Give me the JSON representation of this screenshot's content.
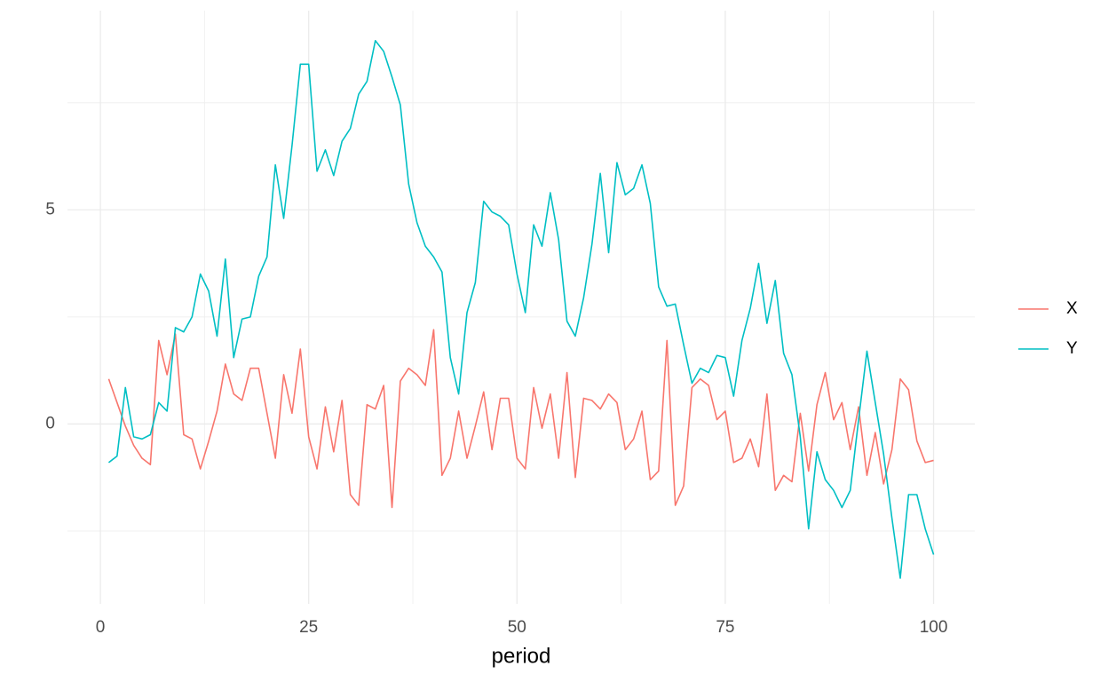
{
  "chart_data": {
    "type": "line",
    "x_label": "period",
    "x": [
      1,
      2,
      3,
      4,
      5,
      6,
      7,
      8,
      9,
      10,
      11,
      12,
      13,
      14,
      15,
      16,
      17,
      18,
      19,
      20,
      21,
      22,
      23,
      24,
      25,
      26,
      27,
      28,
      29,
      30,
      31,
      32,
      33,
      34,
      35,
      36,
      37,
      38,
      39,
      40,
      41,
      42,
      43,
      44,
      45,
      46,
      47,
      48,
      49,
      50,
      51,
      52,
      53,
      54,
      55,
      56,
      57,
      58,
      59,
      60,
      61,
      62,
      63,
      64,
      65,
      66,
      67,
      68,
      69,
      70,
      71,
      72,
      73,
      74,
      75,
      76,
      77,
      78,
      79,
      80,
      81,
      82,
      83,
      84,
      85,
      86,
      87,
      88,
      89,
      90,
      91,
      92,
      93,
      94,
      95,
      96,
      97,
      98,
      99,
      100
    ],
    "series": [
      {
        "name": "X",
        "color": "#F8766D",
        "values": [
          1.05,
          0.5,
          -0.05,
          -0.5,
          -0.8,
          -0.95,
          1.95,
          1.15,
          2.1,
          -0.25,
          -0.35,
          -1.05,
          -0.4,
          0.3,
          1.4,
          0.7,
          0.55,
          1.3,
          1.3,
          0.25,
          -0.8,
          1.15,
          0.25,
          1.75,
          -0.3,
          -1.05,
          0.4,
          -0.65,
          0.55,
          -1.65,
          -1.9,
          0.45,
          0.35,
          0.9,
          -1.95,
          1.0,
          1.3,
          1.15,
          0.9,
          2.2,
          -1.2,
          -0.8,
          0.3,
          -0.8,
          -0.05,
          0.75,
          -0.6,
          0.6,
          0.6,
          -0.8,
          -1.05,
          0.85,
          -0.1,
          0.7,
          -0.8,
          1.2,
          -1.25,
          0.6,
          0.55,
          0.35,
          0.7,
          0.5,
          -0.6,
          -0.35,
          0.3,
          -1.3,
          -1.1,
          1.95,
          -1.9,
          -1.45,
          0.85,
          1.05,
          0.9,
          0.1,
          0.3,
          -0.9,
          -0.8,
          -0.35,
          -1.0,
          0.7,
          -1.55,
          -1.2,
          -1.35,
          0.25,
          -1.1,
          0.45,
          1.2,
          0.1,
          0.5,
          -0.6,
          0.4,
          -1.2,
          -0.2,
          -1.4,
          -0.6,
          1.05,
          0.8,
          -0.4,
          -0.9,
          -0.85
        ]
      },
      {
        "name": "Y",
        "color": "#00BFC4",
        "values": [
          -0.9,
          -0.75,
          0.85,
          -0.3,
          -0.35,
          -0.25,
          0.5,
          0.3,
          2.25,
          2.15,
          2.5,
          3.5,
          3.1,
          2.05,
          3.85,
          1.55,
          2.45,
          2.5,
          3.45,
          3.9,
          6.05,
          4.8,
          6.5,
          8.4,
          8.4,
          5.9,
          6.4,
          5.8,
          6.6,
          6.9,
          7.7,
          8.0,
          8.95,
          8.7,
          8.1,
          7.45,
          5.6,
          4.7,
          4.15,
          3.9,
          3.55,
          1.55,
          0.7,
          2.6,
          3.3,
          5.2,
          4.95,
          4.85,
          4.65,
          3.5,
          2.6,
          4.65,
          4.15,
          5.4,
          4.3,
          2.4,
          2.05,
          2.95,
          4.2,
          5.85,
          4.0,
          6.1,
          5.35,
          5.5,
          6.05,
          5.15,
          3.2,
          2.75,
          2.8,
          1.85,
          0.95,
          1.3,
          1.2,
          1.6,
          1.55,
          0.65,
          1.95,
          2.7,
          3.75,
          2.35,
          3.35,
          1.65,
          1.15,
          -0.3,
          -2.45,
          -0.65,
          -1.3,
          -1.55,
          -1.95,
          -1.55,
          0.1,
          1.7,
          0.5,
          -0.7,
          -2.2,
          -3.6,
          -1.65,
          -1.65,
          -2.45,
          -3.05
        ]
      }
    ],
    "xlim": [
      -3.95,
      104.95
    ],
    "xticks": [
      0,
      25,
      50,
      75,
      100
    ],
    "x_minor_ticks": [
      12.5,
      37.5,
      62.5,
      87.5
    ],
    "ylim": [
      -4.2,
      9.65
    ],
    "yticks": [
      0,
      5
    ],
    "y_minor_ticks": [
      -2.5,
      2.5,
      7.5
    ],
    "grid": true,
    "legend_position": "right"
  }
}
